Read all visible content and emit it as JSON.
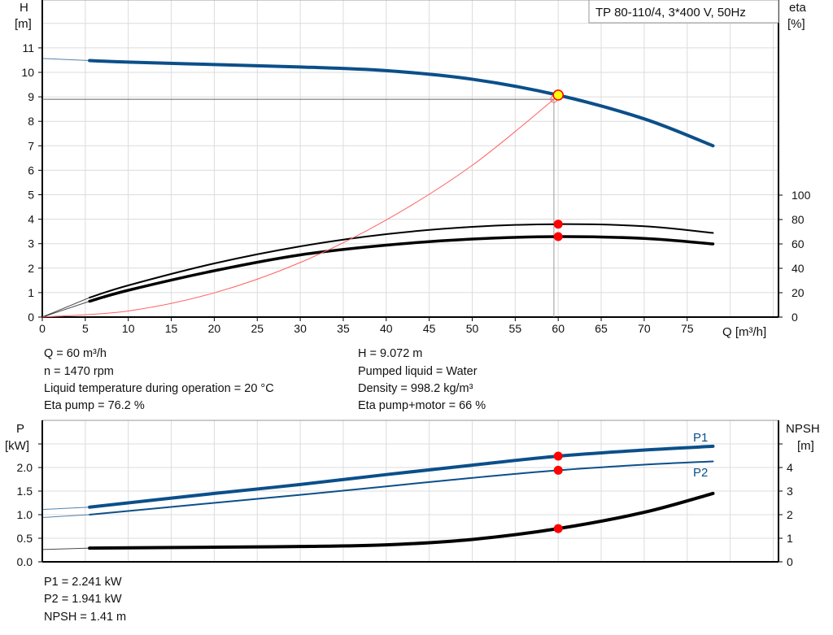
{
  "chart_data": [
    {
      "type": "line",
      "title": "TP 80-110/4, 3*400 V, 50Hz",
      "xlabel": "Q [m³/h]",
      "ylabel": "H\n[m]",
      "y2label": "eta\n[%]",
      "xlim": [
        0,
        78
      ],
      "ylim": [
        0,
        11
      ],
      "y2lim": [
        0,
        100
      ],
      "xticks": [
        0,
        5,
        10,
        15,
        20,
        25,
        30,
        35,
        40,
        45,
        50,
        55,
        60,
        65,
        70,
        75
      ],
      "yticks": [
        0,
        1,
        2,
        3,
        4,
        5,
        6,
        7,
        8,
        9,
        10,
        11
      ],
      "y2ticks": [
        0,
        20,
        40,
        60,
        80,
        100
      ],
      "grid": true,
      "series": [
        {
          "id": "H",
          "axis": "H",
          "color": "#0b4f8a",
          "x": [
            0,
            5.5,
            10,
            20,
            30,
            40,
            50,
            60,
            70,
            78
          ],
          "y": [
            10.57,
            10.48,
            10.42,
            10.32,
            10.22,
            10.07,
            9.72,
            9.07,
            8.1,
            7.0
          ]
        },
        {
          "id": "eta_pump",
          "axis": "eta",
          "color": "#000000",
          "x": [
            0,
            5.5,
            10,
            20,
            30,
            40,
            50,
            60,
            70,
            78
          ],
          "y": [
            0,
            16,
            26,
            44,
            58,
            68,
            74,
            76.2,
            74.5,
            69
          ]
        },
        {
          "id": "eta_pump_motor",
          "axis": "eta",
          "color": "#000000",
          "x": [
            0,
            5.5,
            10,
            20,
            30,
            40,
            50,
            60,
            70,
            78
          ],
          "y": [
            0,
            13,
            22,
            38,
            51,
            59,
            64,
            66,
            64.5,
            60
          ]
        },
        {
          "id": "system",
          "axis": "H",
          "color": "#ff6060",
          "x": [
            0,
            10,
            20,
            30,
            40,
            50,
            59.5
          ],
          "y": [
            0,
            0.25,
            0.99,
            2.23,
            3.97,
            6.2,
            8.9
          ]
        }
      ],
      "duty_point": {
        "Q": 60,
        "H": 9.072,
        "eta_pump": 76.2,
        "eta_pump_motor": 66
      }
    },
    {
      "type": "line",
      "ylabel": "P\n[kW]",
      "y2label": "NPSH\n[m]",
      "xlim": [
        0,
        78
      ],
      "ylim": [
        0,
        2.5
      ],
      "y2lim": [
        0,
        5
      ],
      "yticks": [
        "0.0",
        "0.5",
        "1.0",
        "1.5",
        "2.0"
      ],
      "y2ticks": [
        0,
        1,
        2,
        3,
        4
      ],
      "grid": true,
      "series": [
        {
          "name": "P1",
          "axis": "P",
          "color": "#0b4f8a",
          "x": [
            0,
            5.5,
            20,
            30,
            40,
            50,
            60,
            70,
            78
          ],
          "y": [
            1.11,
            1.16,
            1.45,
            1.64,
            1.85,
            2.05,
            2.241,
            2.37,
            2.45
          ]
        },
        {
          "name": "P2",
          "axis": "P",
          "color": "#0b4f8a",
          "x": [
            0,
            5.5,
            20,
            30,
            40,
            50,
            60,
            70,
            78
          ],
          "y": [
            0.94,
            1.0,
            1.25,
            1.42,
            1.6,
            1.78,
            1.941,
            2.06,
            2.13
          ]
        },
        {
          "id": "NPSH",
          "axis": "NPSH",
          "color": "#000000",
          "x": [
            0,
            5.5,
            20,
            30,
            40,
            50,
            60,
            70,
            78
          ],
          "y": [
            0.52,
            0.58,
            0.62,
            0.65,
            0.72,
            0.95,
            1.41,
            2.1,
            2.9
          ]
        }
      ]
    }
  ],
  "info_left": [
    "Q = 60 m³/h",
    "n = 1470 rpm",
    "Liquid temperature during operation = 20 °C",
    "Eta pump = 76.2 %"
  ],
  "info_right": [
    "H = 9.072 m",
    "Pumped liquid = Water",
    "Density = 998.2 kg/m³",
    "Eta pump+motor = 66 %"
  ],
  "info_bottom": [
    "P1 = 2.241 kW",
    "P2 = 1.941 kW",
    "NPSH = 1.41 m"
  ],
  "labels": {
    "H": "H",
    "Hu": "[m]",
    "eta": "eta",
    "etau": "[%]",
    "P": "P",
    "Pu": "[kW]",
    "N": "NPSH",
    "Nu": "[m]"
  }
}
